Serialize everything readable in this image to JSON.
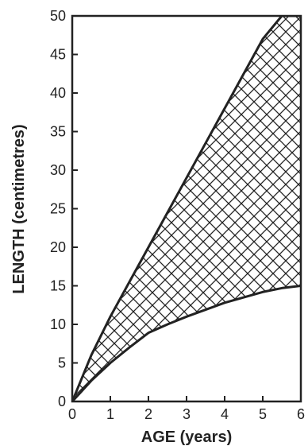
{
  "chart_data": {
    "type": "area",
    "xlabel": "AGE (years)",
    "ylabel": "LENGTH (centimetres)",
    "xlim": [
      0,
      6
    ],
    "ylim": [
      0,
      50
    ],
    "x_ticks": [
      "0",
      "1",
      "2",
      "3",
      "4",
      "5",
      "6"
    ],
    "y_ticks": [
      "0",
      "5",
      "10",
      "15",
      "20",
      "25",
      "30",
      "35",
      "40",
      "45",
      "50"
    ],
    "grid": false,
    "fill_pattern": "crosshatch",
    "colors": {
      "line": "#222222",
      "background": "#ffffff"
    },
    "series": [
      {
        "role": "upper-boundary",
        "x": [
          0,
          0.5,
          1,
          1.5,
          2,
          2.5,
          3,
          3.5,
          4,
          4.5,
          5,
          5.5,
          6
        ],
        "y": [
          0,
          6,
          11,
          15.5,
          20,
          24.5,
          29,
          33.5,
          38,
          42.5,
          47,
          50,
          50
        ]
      },
      {
        "role": "lower-boundary",
        "x": [
          0,
          0.5,
          1,
          1.5,
          2,
          2.5,
          3,
          3.5,
          4,
          4.5,
          5,
          5.5,
          6
        ],
        "y": [
          0,
          2.7,
          5,
          7,
          8.9,
          10,
          11,
          11.9,
          12.8,
          13.5,
          14.2,
          14.7,
          15
        ]
      }
    ]
  }
}
